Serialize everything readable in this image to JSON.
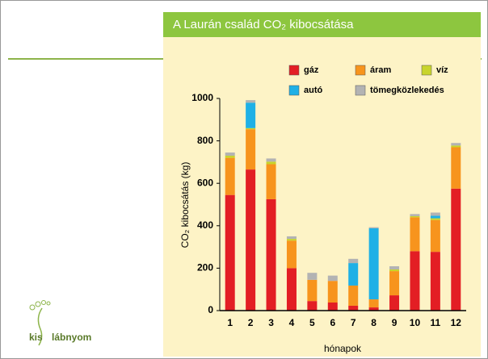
{
  "chart_data": {
    "type": "stacked_bar",
    "title": "A Laurán család CO₂ kibocsátása",
    "x_label": "hónapok",
    "y_label": "CO₂ kibocsátás (kg)",
    "categories": [
      "1",
      "2",
      "3",
      "4",
      "5",
      "6",
      "7",
      "8",
      "9",
      "10",
      "11",
      "12"
    ],
    "series": [
      {
        "name": "gáz",
        "color": "#e31e24",
        "values": [
          545,
          665,
          525,
          200,
          45,
          38,
          23,
          15,
          72,
          280,
          277,
          575
        ]
      },
      {
        "name": "áram",
        "color": "#f7941d",
        "values": [
          175,
          190,
          165,
          130,
          100,
          102,
          95,
          38,
          114,
          160,
          150,
          195
        ]
      },
      {
        "name": "víz",
        "color": "#c8d42c",
        "values": [
          10,
          5,
          12,
          8,
          0,
          0,
          0,
          0,
          8,
          5,
          8,
          8
        ]
      },
      {
        "name": "autó",
        "color": "#1fb0e6",
        "values": [
          0,
          120,
          0,
          0,
          0,
          0,
          106,
          335,
          0,
          0,
          12,
          0
        ]
      },
      {
        "name": "tömegközlekedés",
        "color": "#b3b3b3",
        "values": [
          15,
          12,
          15,
          12,
          33,
          25,
          20,
          5,
          15,
          10,
          15,
          12
        ]
      }
    ],
    "ylim": [
      0,
      1000
    ],
    "yticks": [
      0,
      200,
      400,
      600,
      800,
      1000
    ],
    "grid": false
  },
  "logo": {
    "left": "kis",
    "right": "lábnyom"
  }
}
